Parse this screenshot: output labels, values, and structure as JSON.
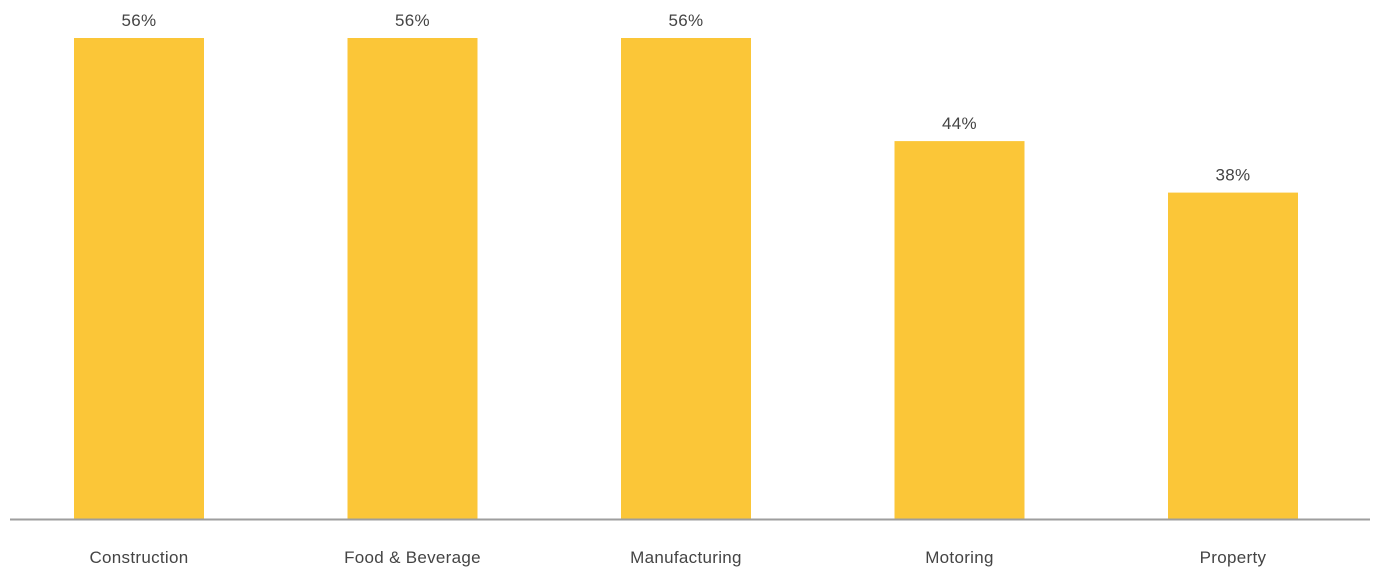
{
  "chart_data": {
    "type": "bar",
    "categories": [
      "Construction",
      "Food & Beverage",
      "Manufacturing",
      "Motoring",
      "Property"
    ],
    "values": [
      56,
      56,
      56,
      44,
      38
    ],
    "data_labels": [
      "56%",
      "56%",
      "56%",
      "44%",
      "38%"
    ],
    "value_unit": "%",
    "ylim": [
      0,
      56
    ],
    "grid": false,
    "legend": "none",
    "colors": {
      "bar": "#FBC638",
      "axis": "#9E9E9E",
      "text": "#444444"
    }
  }
}
